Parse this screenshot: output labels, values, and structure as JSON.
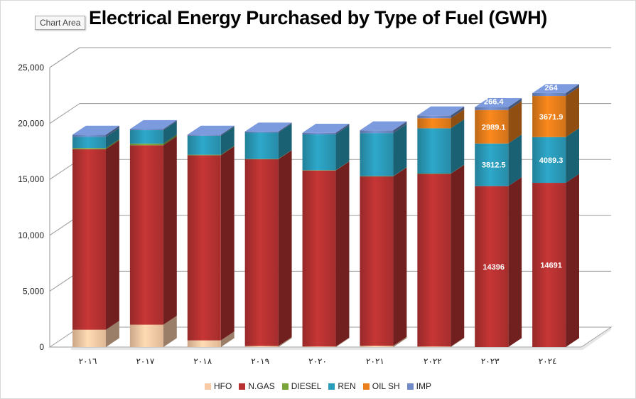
{
  "window": {
    "tooltip": "Chart Area"
  },
  "chart_data": {
    "type": "bar",
    "stacked": true,
    "style": "3d-column",
    "title": "Electrical Energy Purchased by Type of Fuel (GWH)",
    "xlabel": "",
    "ylabel": "",
    "ylim": [
      0,
      25000
    ],
    "yticks": [
      0,
      5000,
      10000,
      15000,
      20000,
      25000
    ],
    "ytick_labels": [
      "0",
      "5,000",
      "10,000",
      "15,000",
      "20,000",
      "25,000"
    ],
    "grid": true,
    "legend_position": "bottom",
    "categories": [
      "٢٠١٦",
      "٢٠١٧",
      "٢٠١٨",
      "٢٠١٩",
      "٢٠٢٠",
      "٢٠٢١",
      "٢٠٢٢",
      "٢٠٢٣",
      "٢٠٢٤"
    ],
    "series": [
      {
        "name": "HFO",
        "color": "#f8cba6",
        "values": [
          1550,
          2000,
          600,
          100,
          50,
          120,
          50,
          0,
          0
        ]
      },
      {
        "name": "N.GAS",
        "color": "#b83232",
        "values": [
          16150,
          16050,
          16550,
          16700,
          15750,
          15150,
          15450,
          14396,
          14691
        ]
      },
      {
        "name": "DIESEL",
        "color": "#7aa33a",
        "values": [
          100,
          150,
          50,
          30,
          20,
          20,
          20,
          0,
          0
        ]
      },
      {
        "name": "REN",
        "color": "#2b9cbb",
        "values": [
          1000,
          1200,
          1700,
          2350,
          3200,
          3850,
          4050,
          3812.5,
          4089.3
        ]
      },
      {
        "name": "OIL SH",
        "color": "#e87f1b",
        "values": [
          0,
          0,
          0,
          0,
          0,
          0,
          900,
          2989.1,
          3671.9
        ]
      },
      {
        "name": "IMP",
        "color": "#6f8ac7",
        "values": [
          200,
          100,
          100,
          100,
          150,
          250,
          250,
          266.4,
          264
        ]
      }
    ],
    "data_labels": [
      {
        "category": "٢٠٢٣",
        "series": "N.GAS",
        "text": "14396"
      },
      {
        "category": "٢٠٢٣",
        "series": "REN",
        "text": "3812.5"
      },
      {
        "category": "٢٠٢٣",
        "series": "OIL SH",
        "text": "2989.1"
      },
      {
        "category": "٢٠٢٣",
        "series": "IMP",
        "text": "266.4"
      },
      {
        "category": "٢٠٢٤",
        "series": "N.GAS",
        "text": "14691"
      },
      {
        "category": "٢٠٢٤",
        "series": "REN",
        "text": "4089.3"
      },
      {
        "category": "٢٠٢٤",
        "series": "OIL SH",
        "text": "3671.9"
      },
      {
        "category": "٢٠٢٤",
        "series": "IMP",
        "text": "264"
      }
    ]
  }
}
